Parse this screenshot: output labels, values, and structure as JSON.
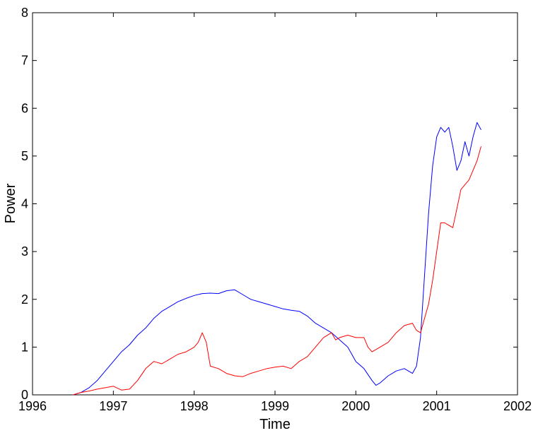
{
  "chart_data": {
    "type": "line",
    "title": "",
    "xlabel": "Time",
    "ylabel": "Power",
    "xlim": [
      1996,
      2002
    ],
    "ylim": [
      0,
      8
    ],
    "xticks": [
      1996,
      1997,
      1998,
      1999,
      2000,
      2001,
      2002
    ],
    "yticks": [
      0,
      1,
      2,
      3,
      4,
      5,
      6,
      7,
      8
    ],
    "grid": false,
    "legend": "none",
    "series": [
      {
        "color": "#0000ff",
        "x": [
          1996.5,
          1996.6,
          1996.7,
          1996.8,
          1996.9,
          1997.0,
          1997.1,
          1997.2,
          1997.3,
          1997.4,
          1997.5,
          1997.6,
          1997.7,
          1997.8,
          1997.9,
          1998.0,
          1998.1,
          1998.2,
          1998.3,
          1998.4,
          1998.5,
          1998.6,
          1998.7,
          1998.8,
          1998.9,
          1999.0,
          1999.1,
          1999.2,
          1999.3,
          1999.4,
          1999.5,
          1999.6,
          1999.7,
          1999.8,
          1999.9,
          2000.0,
          2000.1,
          2000.2,
          2000.25,
          2000.3,
          2000.4,
          2000.5,
          2000.6,
          2000.7,
          2000.75,
          2000.8,
          2000.85,
          2000.9,
          2000.95,
          2001.0,
          2001.05,
          2001.1,
          2001.15,
          2001.2,
          2001.25,
          2001.3,
          2001.35,
          2001.4,
          2001.45,
          2001.5,
          2001.55
        ],
        "y": [
          0.0,
          0.05,
          0.15,
          0.3,
          0.5,
          0.7,
          0.9,
          1.05,
          1.25,
          1.4,
          1.6,
          1.75,
          1.85,
          1.95,
          2.02,
          2.08,
          2.12,
          2.13,
          2.12,
          2.18,
          2.2,
          2.1,
          2.0,
          1.95,
          1.9,
          1.85,
          1.8,
          1.77,
          1.75,
          1.65,
          1.5,
          1.4,
          1.3,
          1.15,
          1.0,
          0.7,
          0.55,
          0.3,
          0.2,
          0.25,
          0.4,
          0.5,
          0.55,
          0.45,
          0.6,
          1.2,
          2.5,
          3.8,
          4.8,
          5.4,
          5.6,
          5.5,
          5.6,
          5.2,
          4.7,
          4.9,
          5.3,
          5.0,
          5.4,
          5.7,
          5.55
        ]
      },
      {
        "color": "#ff0000",
        "x": [
          1996.5,
          1996.6,
          1996.7,
          1996.8,
          1996.9,
          1997.0,
          1997.1,
          1997.2,
          1997.3,
          1997.4,
          1997.5,
          1997.6,
          1997.7,
          1997.8,
          1997.9,
          1998.0,
          1998.05,
          1998.1,
          1998.15,
          1998.2,
          1998.3,
          1998.4,
          1998.5,
          1998.6,
          1998.7,
          1998.8,
          1998.9,
          1999.0,
          1999.1,
          1999.2,
          1999.3,
          1999.4,
          1999.5,
          1999.6,
          1999.7,
          1999.75,
          1999.8,
          1999.9,
          2000.0,
          2000.1,
          2000.15,
          2000.2,
          2000.3,
          2000.4,
          2000.5,
          2000.6,
          2000.7,
          2000.75,
          2000.8,
          2000.9,
          2000.95,
          2001.0,
          2001.05,
          2001.1,
          2001.2,
          2001.25,
          2001.3,
          2001.35,
          2001.4,
          2001.45,
          2001.5,
          2001.55
        ],
        "y": [
          0.0,
          0.05,
          0.08,
          0.12,
          0.15,
          0.18,
          0.1,
          0.12,
          0.3,
          0.55,
          0.7,
          0.65,
          0.75,
          0.85,
          0.9,
          1.0,
          1.1,
          1.3,
          1.1,
          0.6,
          0.55,
          0.45,
          0.4,
          0.38,
          0.45,
          0.5,
          0.55,
          0.58,
          0.6,
          0.55,
          0.7,
          0.8,
          1.0,
          1.2,
          1.3,
          1.15,
          1.2,
          1.25,
          1.2,
          1.2,
          1.0,
          0.9,
          1.0,
          1.1,
          1.3,
          1.45,
          1.5,
          1.35,
          1.3,
          1.9,
          2.4,
          3.0,
          3.6,
          3.6,
          3.5,
          3.9,
          4.3,
          4.4,
          4.5,
          4.7,
          4.9,
          5.2
        ]
      }
    ]
  }
}
